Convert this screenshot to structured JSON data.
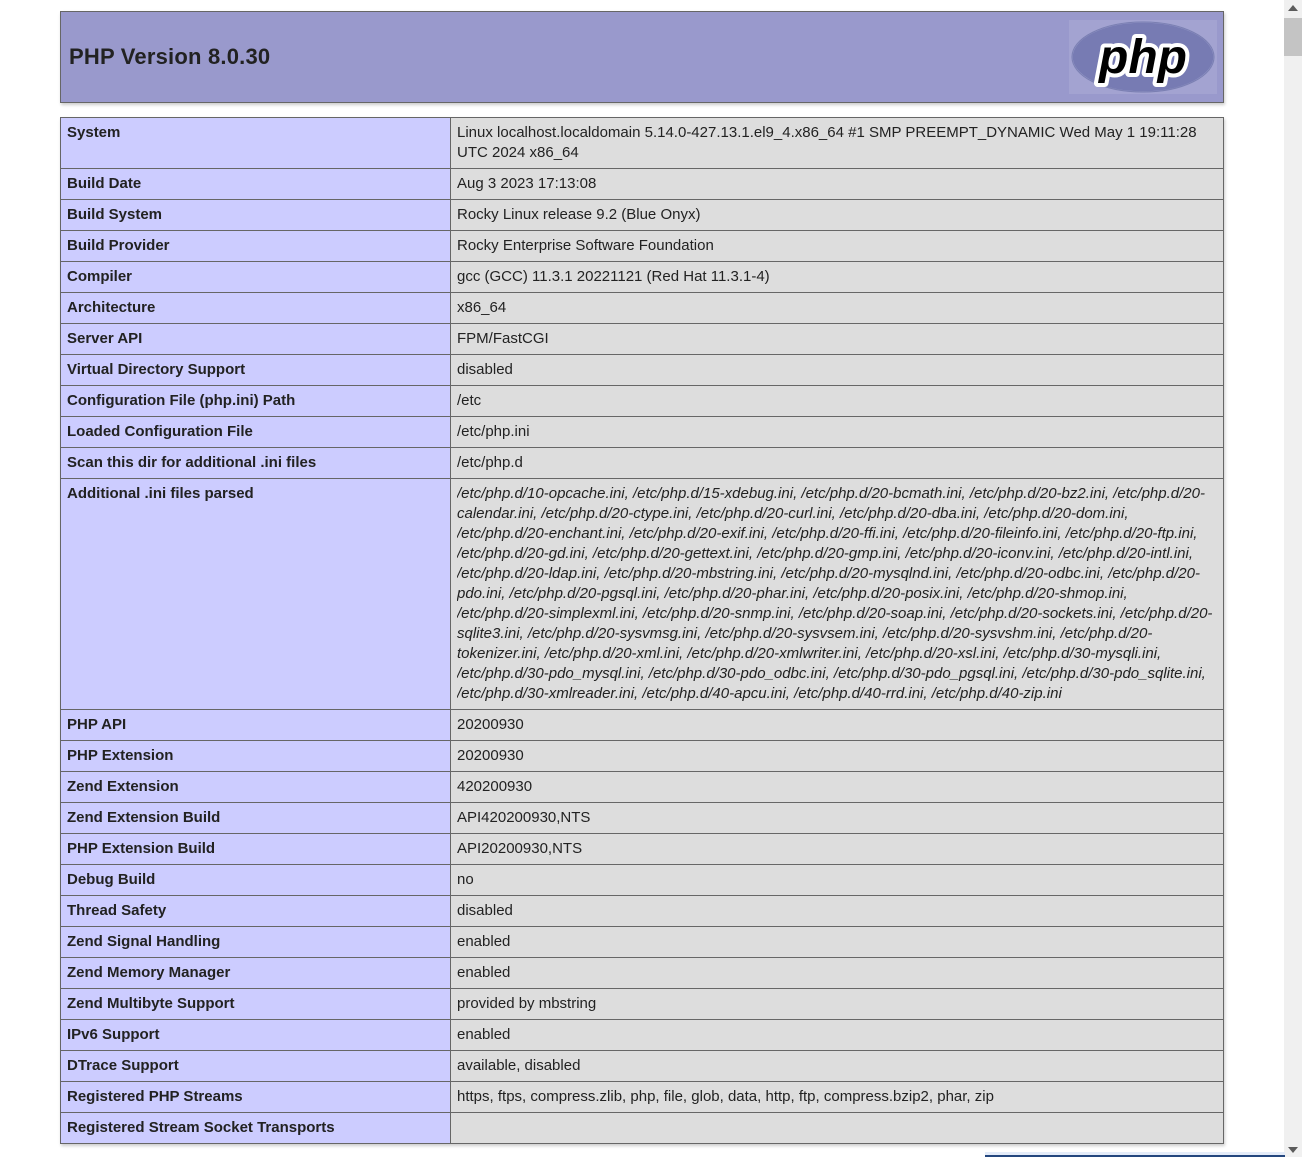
{
  "header": {
    "title": "PHP Version 8.0.30",
    "logo_text": "php"
  },
  "colors": {
    "header_bg": "#9999cc",
    "label_cell_bg": "#ccccff",
    "value_cell_bg": "#dddddd",
    "table_border": "#666666",
    "page_bg": "#ffffff",
    "text": "#222222",
    "logo_ellipse": "#777bb3",
    "scrollbar_track": "#f0f0f0",
    "scrollbar_thumb": "#c4c4c4"
  },
  "info_table": {
    "rows": [
      {
        "label": "System",
        "value": "Linux localhost.localdomain 5.14.0-427.13.1.el9_4.x86_64 #1 SMP PREEMPT_DYNAMIC Wed May 1 19:11:28 UTC 2024 x86_64"
      },
      {
        "label": "Build Date",
        "value": "Aug 3 2023 17:13:08"
      },
      {
        "label": "Build System",
        "value": "Rocky Linux release 9.2 (Blue Onyx)"
      },
      {
        "label": "Build Provider",
        "value": "Rocky Enterprise Software Foundation"
      },
      {
        "label": "Compiler",
        "value": "gcc (GCC) 11.3.1 20221121 (Red Hat 11.3.1-4)"
      },
      {
        "label": "Architecture",
        "value": "x86_64"
      },
      {
        "label": "Server API",
        "value": "FPM/FastCGI"
      },
      {
        "label": "Virtual Directory Support",
        "value": "disabled"
      },
      {
        "label": "Configuration File (php.ini) Path",
        "value": "/etc"
      },
      {
        "label": "Loaded Configuration File",
        "value": "/etc/php.ini"
      },
      {
        "label": "Scan this dir for additional .ini files",
        "value": "/etc/php.d"
      },
      {
        "label": "Additional .ini files parsed",
        "italic": true,
        "clamp": true,
        "value": "/etc/php.d/10-opcache.ini, /etc/php.d/15-xdebug.ini, /etc/php.d/20-bcmath.ini, /etc/php.d/20-bz2.ini, /etc/php.d/20-calendar.ini, /etc/php.d/20-ctype.ini, /etc/php.d/20-curl.ini, /etc/php.d/20-dba.ini, /etc/php.d/20-dom.ini, /etc/php.d/20-enchant.ini, /etc/php.d/20-exif.ini, /etc/php.d/20-ffi.ini, /etc/php.d/20-fileinfo.ini, /etc/php.d/20-ftp.ini, /etc/php.d/20-gd.ini, /etc/php.d/20-gettext.ini, /etc/php.d/20-gmp.ini, /etc/php.d/20-iconv.ini, /etc/php.d/20-intl.ini, /etc/php.d/20-ldap.ini, /etc/php.d/20-mbstring.ini, /etc/php.d/20-mysqlnd.ini, /etc/php.d/20-odbc.ini, /etc/php.d/20-pdo.ini, /etc/php.d/20-pgsql.ini, /etc/php.d/20-phar.ini, /etc/php.d/20-posix.ini, /etc/php.d/20-shmop.ini, /etc/php.d/20-simplexml.ini, /etc/php.d/20-snmp.ini, /etc/php.d/20-soap.ini, /etc/php.d/20-sockets.ini, /etc/php.d/20-sqlite3.ini, /etc/php.d/20-sysvmsg.ini, /etc/php.d/20-sysvsem.ini, /etc/php.d/20-sysvshm.ini, /etc/php.d/20-tokenizer.ini, /etc/php.d/20-xml.ini, /etc/php.d/20-xmlwriter.ini, /etc/php.d/20-xsl.ini, /etc/php.d/30-mysqli.ini, /etc/php.d/30-pdo_mysql.ini, /etc/php.d/30-pdo_odbc.ini, /etc/php.d/30-pdo_pgsql.ini, /etc/php.d/30-pdo_sqlite.ini, /etc/php.d/30-xmlreader.ini, /etc/php.d/40-apcu.ini, /etc/php.d/40-rrd.ini, /etc/php.d/40-zip.ini"
      },
      {
        "label": "PHP API",
        "value": "20200930"
      },
      {
        "label": "PHP Extension",
        "value": "20200930"
      },
      {
        "label": "Zend Extension",
        "value": "420200930"
      },
      {
        "label": "Zend Extension Build",
        "value": "API420200930,NTS"
      },
      {
        "label": "PHP Extension Build",
        "value": "API20200930,NTS"
      },
      {
        "label": "Debug Build",
        "value": "no"
      },
      {
        "label": "Thread Safety",
        "value": "disabled"
      },
      {
        "label": "Zend Signal Handling",
        "value": "enabled"
      },
      {
        "label": "Zend Memory Manager",
        "value": "enabled"
      },
      {
        "label": "Zend Multibyte Support",
        "value": "provided by mbstring"
      },
      {
        "label": "IPv6 Support",
        "value": "enabled"
      },
      {
        "label": "DTrace Support",
        "value": "available, disabled"
      },
      {
        "label": "Registered PHP Streams",
        "value": "https, ftps, compress.zlib, php, file, glob, data, http, ftp, compress.bzip2, phar, zip"
      },
      {
        "label": "Registered Stream Socket Transports",
        "value": ""
      }
    ]
  }
}
